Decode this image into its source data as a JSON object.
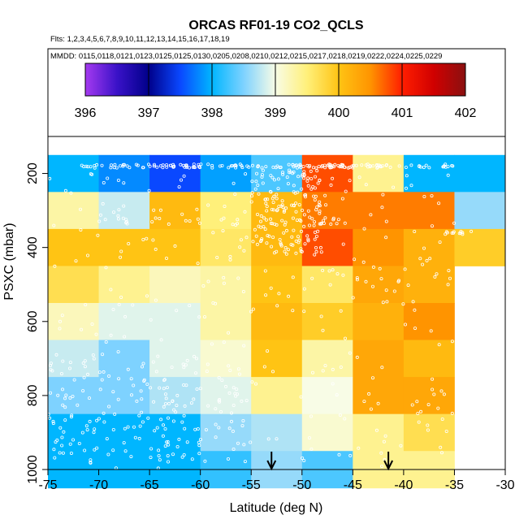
{
  "chart_data": {
    "type": "heatmap",
    "title": "ORCAS RF01-19 CO2_QCLS",
    "flights_note": "Flts: 1,2,3,4,5,6,7,8,9,10,11,12,13,14,15,16,17,18,19",
    "dates_note": "MMDD: 0115,0118,0121,0123,0125,0125,0130,0205,0208,0210,0212,0215,0217,0218,0219,0222,0224,0225,0229",
    "xlabel": "Latitude (deg N)",
    "ylabel": "PSXC (mbar)",
    "xlim": [
      -75,
      -30
    ],
    "ylim": [
      1000,
      100
    ],
    "xticks": [
      -75,
      -70,
      -65,
      -60,
      -55,
      -50,
      -45,
      -40,
      -35,
      -30
    ],
    "yticks": [
      200,
      400,
      600,
      800,
      1000
    ],
    "colorbar": {
      "min": 396,
      "max": 402,
      "ticks": [
        396,
        397,
        398,
        399,
        400,
        401,
        402
      ],
      "stops": [
        {
          "v": 396.0,
          "c": "#a53af0"
        },
        {
          "v": 396.5,
          "c": "#3a12c8"
        },
        {
          "v": 397.0,
          "c": "#00008a"
        },
        {
          "v": 397.5,
          "c": "#0a48ff"
        },
        {
          "v": 398.0,
          "c": "#00b6ff"
        },
        {
          "v": 398.5,
          "c": "#7ed2ff"
        },
        {
          "v": 399.0,
          "c": "#f8fce6"
        },
        {
          "v": 399.5,
          "c": "#fff07a"
        },
        {
          "v": 400.0,
          "c": "#ffc414"
        },
        {
          "v": 400.5,
          "c": "#ff9400"
        },
        {
          "v": 401.0,
          "c": "#ff1e00"
        },
        {
          "v": 401.5,
          "c": "#d00000"
        },
        {
          "v": 402.0,
          "c": "#8a1010"
        }
      ]
    },
    "lat_bins": [
      -75,
      -70,
      -65,
      -60,
      -55,
      -50,
      -45,
      -40,
      -35,
      -30
    ],
    "pressure_bins": [
      100,
      150,
      200,
      250,
      300,
      350,
      400,
      450,
      500,
      550,
      600,
      650,
      700,
      750,
      800,
      850,
      900,
      950,
      1000
    ],
    "cells": [
      {
        "lat": -75,
        "p": 150,
        "v": 398.0
      },
      {
        "lat": -70,
        "p": 150,
        "v": 397.8
      },
      {
        "lat": -65,
        "p": 150,
        "v": 397.5
      },
      {
        "lat": -60,
        "p": 150,
        "v": 397.9
      },
      {
        "lat": -55,
        "p": 150,
        "v": 398.3
      },
      {
        "lat": -50,
        "p": 150,
        "v": 400.8
      },
      {
        "lat": -45,
        "p": 150,
        "v": 399.4
      },
      {
        "lat": -40,
        "p": 150,
        "v": 398.0
      },
      {
        "lat": -35,
        "p": 150,
        "v": 398.0
      },
      {
        "lat": -75,
        "p": 250,
        "v": 399.3
      },
      {
        "lat": -70,
        "p": 250,
        "v": 398.8
      },
      {
        "lat": -65,
        "p": 250,
        "v": 400.1
      },
      {
        "lat": -60,
        "p": 250,
        "v": 399.5
      },
      {
        "lat": -55,
        "p": 250,
        "v": 400.1
      },
      {
        "lat": -50,
        "p": 250,
        "v": 400.6
      },
      {
        "lat": -45,
        "p": 250,
        "v": 400.6
      },
      {
        "lat": -40,
        "p": 250,
        "v": 400.6
      },
      {
        "lat": -35,
        "p": 250,
        "v": 398.6
      },
      {
        "lat": -75,
        "p": 350,
        "v": 400.0
      },
      {
        "lat": -70,
        "p": 350,
        "v": 400.0
      },
      {
        "lat": -65,
        "p": 350,
        "v": 400.0
      },
      {
        "lat": -60,
        "p": 350,
        "v": 399.6
      },
      {
        "lat": -55,
        "p": 350,
        "v": 400.1
      },
      {
        "lat": -50,
        "p": 350,
        "v": 400.8
      },
      {
        "lat": -45,
        "p": 350,
        "v": 400.5
      },
      {
        "lat": -40,
        "p": 350,
        "v": 400.2
      },
      {
        "lat": -35,
        "p": 350,
        "v": 399.9
      },
      {
        "lat": -75,
        "p": 450,
        "v": 399.7
      },
      {
        "lat": -70,
        "p": 450,
        "v": 399.4
      },
      {
        "lat": -65,
        "p": 450,
        "v": 399.2
      },
      {
        "lat": -60,
        "p": 450,
        "v": 399.3
      },
      {
        "lat": -55,
        "p": 450,
        "v": 400.0
      },
      {
        "lat": -50,
        "p": 450,
        "v": 399.6
      },
      {
        "lat": -45,
        "p": 450,
        "v": 400.3
      },
      {
        "lat": -40,
        "p": 450,
        "v": 400.2
      },
      {
        "lat": -75,
        "p": 550,
        "v": 399.2
      },
      {
        "lat": -70,
        "p": 550,
        "v": 398.9
      },
      {
        "lat": -65,
        "p": 550,
        "v": 398.9
      },
      {
        "lat": -60,
        "p": 550,
        "v": 399.3
      },
      {
        "lat": -55,
        "p": 550,
        "v": 400.1
      },
      {
        "lat": -50,
        "p": 550,
        "v": 399.9
      },
      {
        "lat": -45,
        "p": 550,
        "v": 400.2
      },
      {
        "lat": -40,
        "p": 550,
        "v": 400.5
      },
      {
        "lat": -75,
        "p": 650,
        "v": 398.8
      },
      {
        "lat": -70,
        "p": 650,
        "v": 398.5
      },
      {
        "lat": -65,
        "p": 650,
        "v": 398.9
      },
      {
        "lat": -60,
        "p": 650,
        "v": 399.1
      },
      {
        "lat": -55,
        "p": 650,
        "v": 400.0
      },
      {
        "lat": -50,
        "p": 650,
        "v": 399.3
      },
      {
        "lat": -45,
        "p": 650,
        "v": 400.3
      },
      {
        "lat": -40,
        "p": 650,
        "v": 400.1
      },
      {
        "lat": -75,
        "p": 750,
        "v": 398.5
      },
      {
        "lat": -70,
        "p": 750,
        "v": 398.5
      },
      {
        "lat": -65,
        "p": 750,
        "v": 398.7
      },
      {
        "lat": -60,
        "p": 750,
        "v": 398.9
      },
      {
        "lat": -55,
        "p": 750,
        "v": 399.4
      },
      {
        "lat": -50,
        "p": 750,
        "v": 399.0
      },
      {
        "lat": -45,
        "p": 750,
        "v": 400.3
      },
      {
        "lat": -40,
        "p": 750,
        "v": 400.3
      },
      {
        "lat": -75,
        "p": 850,
        "v": 398.0
      },
      {
        "lat": -70,
        "p": 850,
        "v": 398.0
      },
      {
        "lat": -65,
        "p": 850,
        "v": 398.0
      },
      {
        "lat": -60,
        "p": 850,
        "v": 398.6
      },
      {
        "lat": -55,
        "p": 850,
        "v": 398.7
      },
      {
        "lat": -50,
        "p": 850,
        "v": 399.1
      },
      {
        "lat": -45,
        "p": 850,
        "v": 399.4
      },
      {
        "lat": -40,
        "p": 850,
        "v": 399.7
      },
      {
        "lat": -75,
        "p": 950,
        "v": 398.0
      },
      {
        "lat": -70,
        "p": 950,
        "v": 398.0
      },
      {
        "lat": -65,
        "p": 950,
        "v": 398.0
      },
      {
        "lat": -60,
        "p": 950,
        "v": 398.2
      },
      {
        "lat": -55,
        "p": 950,
        "v": 398.6
      },
      {
        "lat": -50,
        "p": 950,
        "v": 398.3
      },
      {
        "lat": -45,
        "p": 950,
        "v": 399.4
      },
      {
        "lat": -40,
        "p": 950,
        "v": 399.4
      }
    ],
    "markers": [
      {
        "lat": -53,
        "label": "arrow"
      },
      {
        "lat": -41.5,
        "label": "arrow"
      }
    ],
    "sample_points_note": "white open circles mark individual aircraft CO2 samples"
  }
}
